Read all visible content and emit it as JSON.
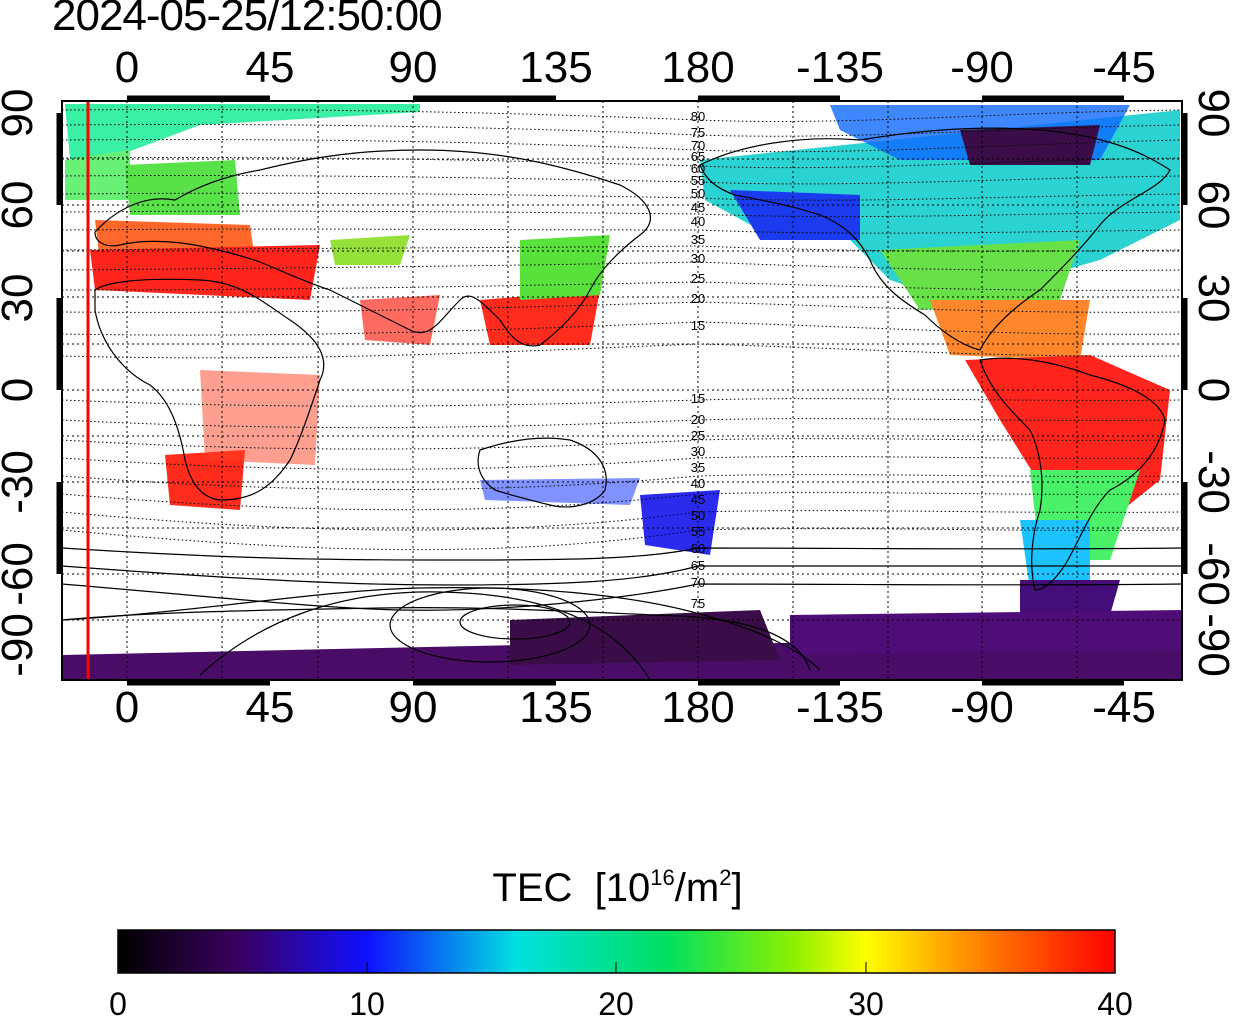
{
  "timestamp": "2024-05-25/12:50:00",
  "longitude_ticks": [
    "0",
    "45",
    "90",
    "135",
    "180",
    "-135",
    "-90",
    "-45"
  ],
  "latitude_ticks": [
    "90",
    "60",
    "30",
    "0",
    "-30",
    "-60",
    "-90"
  ],
  "contour_labels_north": [
    "80",
    "75",
    "70",
    "65",
    "60",
    "55",
    "50",
    "45",
    "40",
    "35",
    "30",
    "25",
    "20",
    "15"
  ],
  "contour_labels_south": [
    "15",
    "20",
    "25",
    "30",
    "35",
    "40",
    "45",
    "50",
    "55",
    "60",
    "65",
    "70",
    "75"
  ],
  "colorbar": {
    "title": "TEC",
    "unit_prefix": "[10",
    "unit_exp": "16",
    "unit_mid": "/m",
    "unit_exp2": "2",
    "unit_suffix": "]",
    "ticks": [
      "0",
      "10",
      "20",
      "30",
      "40"
    ],
    "min": 0,
    "max": 40
  },
  "colors": {
    "terminator_line": "#ff0000",
    "low": "#330033",
    "high": "#ff0000"
  }
}
